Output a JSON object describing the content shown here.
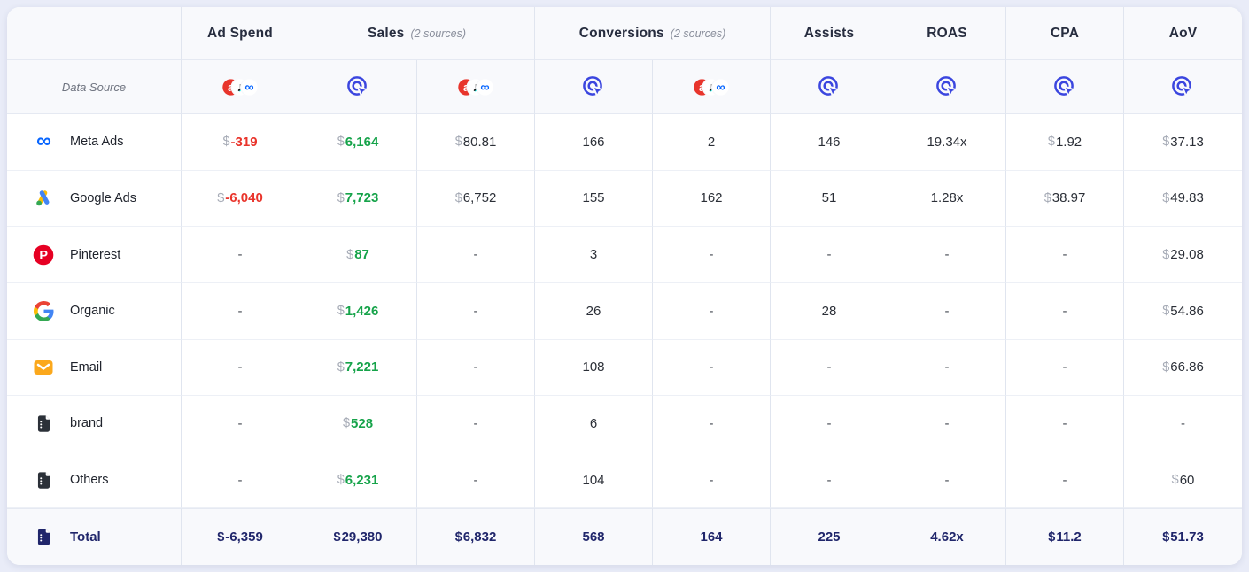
{
  "table": {
    "data_source_label": "Data Source",
    "column_groups": [
      {
        "label": "Ad Spend",
        "sub": "",
        "span": 1
      },
      {
        "label": "Sales",
        "sub": "(2 sources)",
        "span": 2
      },
      {
        "label": "Conversions",
        "sub": "(2 sources)",
        "span": 2
      },
      {
        "label": "Assists",
        "sub": "",
        "span": 1
      },
      {
        "label": "ROAS",
        "sub": "",
        "span": 1
      },
      {
        "label": "CPA",
        "sub": "",
        "span": 1
      },
      {
        "label": "AoV",
        "sub": "",
        "span": 1
      }
    ],
    "source_icons": [
      "multi-platform-icon",
      "click-attribution-icon",
      "multi-platform-icon",
      "click-attribution-icon",
      "multi-platform-icon",
      "click-attribution-icon",
      "click-attribution-icon",
      "click-attribution-icon",
      "click-attribution-icon"
    ],
    "rows": [
      {
        "name": "Meta Ads",
        "icon": "meta-icon",
        "cells": [
          {
            "p": "$",
            "v": "-319",
            "c": "neg"
          },
          {
            "p": "$",
            "v": "6,164",
            "c": "pos"
          },
          {
            "p": "$",
            "v": "80.81"
          },
          {
            "v": "166"
          },
          {
            "v": "2"
          },
          {
            "v": "146"
          },
          {
            "v": "19.34x"
          },
          {
            "p": "$",
            "v": "1.92"
          },
          {
            "p": "$",
            "v": "37.13"
          }
        ]
      },
      {
        "name": "Google Ads",
        "icon": "google-ads-icon",
        "cells": [
          {
            "p": "$",
            "v": "-6,040",
            "c": "neg"
          },
          {
            "p": "$",
            "v": "7,723",
            "c": "pos"
          },
          {
            "p": "$",
            "v": "6,752"
          },
          {
            "v": "155"
          },
          {
            "v": "162"
          },
          {
            "v": "51"
          },
          {
            "v": "1.28x"
          },
          {
            "p": "$",
            "v": "38.97"
          },
          {
            "p": "$",
            "v": "49.83"
          }
        ]
      },
      {
        "name": "Pinterest",
        "icon": "pinterest-icon",
        "cells": [
          {
            "v": "-",
            "c": "dash"
          },
          {
            "p": "$",
            "v": "87",
            "c": "pos"
          },
          {
            "v": "-",
            "c": "dash"
          },
          {
            "v": "3"
          },
          {
            "v": "-",
            "c": "dash"
          },
          {
            "v": "-",
            "c": "dash"
          },
          {
            "v": "-",
            "c": "dash"
          },
          {
            "v": "-",
            "c": "dash"
          },
          {
            "p": "$",
            "v": "29.08"
          }
        ]
      },
      {
        "name": "Organic",
        "icon": "google-icon",
        "cells": [
          {
            "v": "-",
            "c": "dash"
          },
          {
            "p": "$",
            "v": "1,426",
            "c": "pos"
          },
          {
            "v": "-",
            "c": "dash"
          },
          {
            "v": "26"
          },
          {
            "v": "-",
            "c": "dash"
          },
          {
            "v": "28"
          },
          {
            "v": "-",
            "c": "dash"
          },
          {
            "v": "-",
            "c": "dash"
          },
          {
            "p": "$",
            "v": "54.86"
          }
        ]
      },
      {
        "name": "Email",
        "icon": "email-icon",
        "cells": [
          {
            "v": "-",
            "c": "dash"
          },
          {
            "p": "$",
            "v": "7,221",
            "c": "pos"
          },
          {
            "v": "-",
            "c": "dash"
          },
          {
            "v": "108"
          },
          {
            "v": "-",
            "c": "dash"
          },
          {
            "v": "-",
            "c": "dash"
          },
          {
            "v": "-",
            "c": "dash"
          },
          {
            "v": "-",
            "c": "dash"
          },
          {
            "p": "$",
            "v": "66.86"
          }
        ]
      },
      {
        "name": "brand",
        "icon": "document-icon",
        "cells": [
          {
            "v": "-",
            "c": "dash"
          },
          {
            "p": "$",
            "v": "528",
            "c": "pos"
          },
          {
            "v": "-",
            "c": "dash"
          },
          {
            "v": "6"
          },
          {
            "v": "-",
            "c": "dash"
          },
          {
            "v": "-",
            "c": "dash"
          },
          {
            "v": "-",
            "c": "dash"
          },
          {
            "v": "-",
            "c": "dash"
          },
          {
            "v": "-",
            "c": "dash"
          }
        ]
      },
      {
        "name": "Others",
        "icon": "document-icon",
        "cells": [
          {
            "v": "-",
            "c": "dash"
          },
          {
            "p": "$",
            "v": "6,231",
            "c": "pos"
          },
          {
            "v": "-",
            "c": "dash"
          },
          {
            "v": "104"
          },
          {
            "v": "-",
            "c": "dash"
          },
          {
            "v": "-",
            "c": "dash"
          },
          {
            "v": "-",
            "c": "dash"
          },
          {
            "v": "-",
            "c": "dash"
          },
          {
            "p": "$",
            "v": "60"
          }
        ]
      },
      {
        "name": "Total",
        "icon": "document-navy-icon",
        "total": true,
        "cells": [
          {
            "p": "$",
            "v": "-6,359"
          },
          {
            "p": "$",
            "v": "29,380"
          },
          {
            "p": "$",
            "v": "6,832"
          },
          {
            "v": "568"
          },
          {
            "v": "164"
          },
          {
            "v": "225"
          },
          {
            "v": "4.62x"
          },
          {
            "p": "$",
            "v": "11.2"
          },
          {
            "p": "$",
            "v": "51.73"
          }
        ]
      }
    ],
    "colors": {
      "positive": "#16A34A",
      "negative": "#E9342B",
      "total_text": "#20266B",
      "accent_blue": "#3B46DF"
    }
  }
}
